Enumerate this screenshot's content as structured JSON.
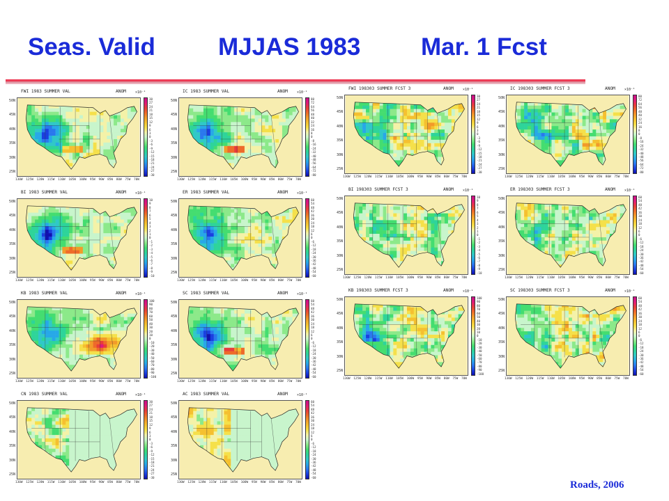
{
  "header": {
    "title_part1": "Seas. Valid",
    "title_part2": "MJJAS 1983",
    "title_part3": "Mar. 1 Fcst"
  },
  "credit": "Roads, 2006",
  "axes": {
    "lat_labels": [
      "50N",
      "45N",
      "40N",
      "35N",
      "30N",
      "25N"
    ],
    "lon_labels": [
      "130W",
      "125W",
      "120W",
      "115W",
      "110W",
      "105W",
      "100W",
      "95W",
      "90W",
      "85W",
      "80W",
      "75W",
      "70W"
    ],
    "units_label": "×10⁻¹"
  },
  "panels_val": [
    {
      "title": "FWI  1983 SUMMER VAL",
      "anom": "ANOM",
      "scale": [
        "30",
        "27",
        "24",
        "21",
        "18",
        "15",
        "12",
        "9",
        "6",
        "3",
        "0",
        "-3",
        "-6",
        "-9",
        "-12",
        "-15",
        "-18",
        "-21",
        "-24",
        "-27",
        "-30"
      ],
      "pattern": "west-blue-strong"
    },
    {
      "title": "IC  1983 SUMMER VAL",
      "anom": "ANOM",
      "scale": [
        "80",
        "72",
        "64",
        "56",
        "48",
        "40",
        "32",
        "24",
        "16",
        "8",
        "0",
        "-8",
        "-16",
        "-24",
        "-32",
        "-40",
        "-48",
        "-56",
        "-64",
        "-72",
        "-80"
      ],
      "pattern": "west-blue-strong"
    },
    {
      "title": "BI  1983 SUMMER VAL",
      "anom": "ANOM",
      "scale": [
        "10",
        "9",
        "8",
        "7",
        "6",
        "5",
        "4",
        "3",
        "2",
        "1",
        "0",
        "-1",
        "-2",
        "-3",
        "-4",
        "-5",
        "-6",
        "-7",
        "-8",
        "-9",
        "-10"
      ],
      "pattern": "west-blue-strong"
    },
    {
      "title": "ER  1983 SUMMER VAL",
      "anom": "ANOM",
      "scale": [
        "60",
        "54",
        "48",
        "42",
        "36",
        "30",
        "24",
        "18",
        "12",
        "6",
        "0",
        "-6",
        "-12",
        "-18",
        "-24",
        "-30",
        "-36",
        "-42",
        "-48",
        "-54",
        "-60"
      ],
      "pattern": "west-blue-mid"
    },
    {
      "title": "KB  1983 SUMMER VAL",
      "anom": "ANOM",
      "scale": [
        "100",
        "90",
        "80",
        "70",
        "60",
        "50",
        "40",
        "30",
        "20",
        "10",
        "0",
        "-10",
        "-20",
        "-30",
        "-40",
        "-50",
        "-60",
        "-70",
        "-80",
        "-90",
        "-100"
      ],
      "pattern": "kb-hot"
    },
    {
      "title": "SC  1983 SUMMER VAL",
      "anom": "ANOM",
      "scale": [
        "60",
        "54",
        "48",
        "42",
        "36",
        "30",
        "24",
        "18",
        "12",
        "6",
        "0",
        "-6",
        "-12",
        "-18",
        "-24",
        "-30",
        "-36",
        "-42",
        "-48",
        "-54",
        "-60"
      ],
      "pattern": "west-blue-strong"
    },
    {
      "title": "CN  1983 SUMMER VAL",
      "anom": "ANOM",
      "scale": [
        "30",
        "27",
        "24",
        "21",
        "18",
        "15",
        "12",
        "9",
        "6",
        "3",
        "0",
        "-3",
        "-6",
        "-9",
        "-12",
        "-15",
        "-18",
        "-21",
        "-24",
        "-27",
        "-30"
      ],
      "pattern": "west-only"
    },
    {
      "title": "AC  1983 SUMMER VAL",
      "anom": "ANOM",
      "scale": [
        "60",
        "54",
        "48",
        "42",
        "36",
        "30",
        "24",
        "18",
        "12",
        "6",
        "0",
        "-6",
        "-12",
        "-18",
        "-24",
        "-30",
        "-36",
        "-42",
        "-48",
        "-54",
        "-60"
      ],
      "pattern": "west-only-yellow"
    }
  ],
  "panels_fcst": [
    {
      "title": "FWI  198303 SUMMER FCST 3",
      "anom": "ANOM",
      "scale": [
        "30",
        "27",
        "24",
        "21",
        "18",
        "15",
        "12",
        "9",
        "6",
        "3",
        "0",
        "-3",
        "-6",
        "-9",
        "-12",
        "-15",
        "-18",
        "-21",
        "-24",
        "-27",
        "-30"
      ],
      "pattern": "fcst-mixed"
    },
    {
      "title": "IC  198303 SUMMER FCST 3",
      "anom": "ANOM",
      "scale": [
        "80",
        "72",
        "64",
        "56",
        "48",
        "40",
        "32",
        "24",
        "16",
        "8",
        "0",
        "-8",
        "-16",
        "-24",
        "-32",
        "-40",
        "-48",
        "-56",
        "-64",
        "-72",
        "-80"
      ],
      "pattern": "fcst-mixed"
    },
    {
      "title": "BI  198303 SUMMER FCST 3",
      "anom": "ANOM",
      "scale": [
        "10",
        "9",
        "8",
        "7",
        "6",
        "5",
        "4",
        "3",
        "2",
        "1",
        "0",
        "-1",
        "-2",
        "-3",
        "-4",
        "-5",
        "-6",
        "-7",
        "-8",
        "-9",
        "-10"
      ],
      "pattern": "fcst-mild"
    },
    {
      "title": "ER  198303 SUMMER FCST 3",
      "anom": "ANOM",
      "scale": [
        "60",
        "54",
        "48",
        "42",
        "36",
        "30",
        "24",
        "18",
        "12",
        "6",
        "0",
        "-6",
        "-12",
        "-18",
        "-24",
        "-30",
        "-36",
        "-42",
        "-48",
        "-54",
        "-60"
      ],
      "pattern": "fcst-mild"
    },
    {
      "title": "KB  198303 SUMMER FCST 3",
      "anom": "ANOM",
      "scale": [
        "100",
        "90",
        "80",
        "70",
        "60",
        "50",
        "40",
        "30",
        "20",
        "10",
        "0",
        "-10",
        "-20",
        "-30",
        "-40",
        "-50",
        "-60",
        "-70",
        "-80",
        "-90",
        "-100"
      ],
      "pattern": "fcst-mixed"
    },
    {
      "title": "SC  198303 SUMMER FCST 3",
      "anom": "ANOM",
      "scale": [
        "60",
        "54",
        "48",
        "42",
        "36",
        "30",
        "24",
        "18",
        "12",
        "6",
        "0",
        "-6",
        "-12",
        "-18",
        "-24",
        "-30",
        "-36",
        "-42",
        "-48",
        "-54",
        "-60"
      ],
      "pattern": "fcst-mixed"
    }
  ],
  "colors": {
    "title": "#1a2bd8",
    "rule": "#ee3b55",
    "land_bg": "#f7edb0",
    "palette": [
      "#1010b0",
      "#1a3fe0",
      "#2a78ee",
      "#27a8e8",
      "#30c8c8",
      "#2ed49a",
      "#44dd70",
      "#8ce98a",
      "#c8f5cc",
      "#f4f2a8",
      "#f5e04a",
      "#f5c030",
      "#f29a2a",
      "#ee6a2a",
      "#e83c3c",
      "#e01a7a",
      "#c8108a"
    ]
  }
}
